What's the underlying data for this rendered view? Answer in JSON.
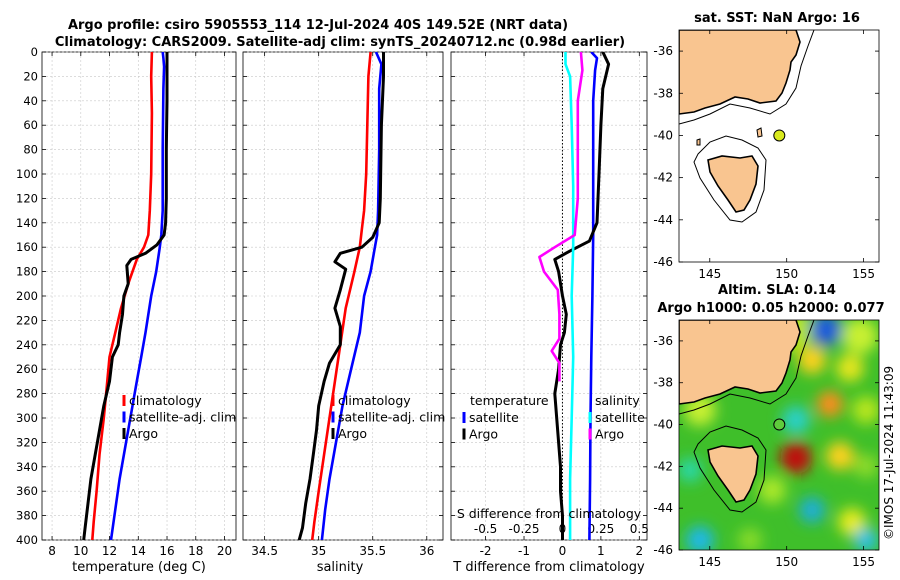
{
  "header": {
    "line1": "Argo profile: csiro 5905553_114 12-Jul-2024 40S 149.52E (NRT data)",
    "line2": "Climatology: CARS2009. Satellite-adj clim: synTS_20240712.nc (0.98d earlier)"
  },
  "credit": "©IMOS 17-Jul-2024 11:43:09",
  "chart_data": [
    {
      "type": "line",
      "id": "temperature-profile",
      "xlabel": "temperature (deg C)",
      "ylabel": "",
      "xlim": [
        7.3,
        20.8
      ],
      "ylim": [
        400,
        0
      ],
      "xticks": [
        8,
        10,
        12,
        14,
        16,
        18,
        20
      ],
      "yticks": [
        0,
        20,
        40,
        60,
        80,
        100,
        120,
        140,
        160,
        180,
        200,
        220,
        240,
        260,
        280,
        300,
        320,
        340,
        360,
        380,
        400
      ],
      "grid": true,
      "legend": {
        "position": "lower-right",
        "title": "",
        "entries": [
          "climatology",
          "satellite-adj. clim",
          "Argo"
        ]
      },
      "series": [
        {
          "name": "climatology",
          "color": "#ff0000",
          "points": [
            [
              14.95,
              0
            ],
            [
              14.9,
              20
            ],
            [
              14.95,
              50
            ],
            [
              14.9,
              100
            ],
            [
              14.8,
              130
            ],
            [
              14.7,
              150
            ],
            [
              14.4,
              160
            ],
            [
              13.9,
              170
            ],
            [
              13.3,
              190
            ],
            [
              12.8,
              210
            ],
            [
              12.4,
              230
            ],
            [
              12.0,
              250
            ],
            [
              11.8,
              275
            ],
            [
              11.6,
              300
            ],
            [
              11.3,
              330
            ],
            [
              11.1,
              360
            ],
            [
              10.9,
              385
            ],
            [
              10.8,
              400
            ]
          ]
        },
        {
          "name": "satellite-adj. clim",
          "color": "#0000ff",
          "points": [
            [
              15.7,
              0
            ],
            [
              15.75,
              5
            ],
            [
              15.8,
              12
            ],
            [
              15.75,
              30
            ],
            [
              15.7,
              80
            ],
            [
              15.7,
              130
            ],
            [
              15.6,
              150
            ],
            [
              15.5,
              160
            ],
            [
              15.25,
              180
            ],
            [
              14.9,
              200
            ],
            [
              14.5,
              230
            ],
            [
              14.2,
              250
            ],
            [
              13.9,
              270
            ],
            [
              13.6,
              290
            ],
            [
              13.3,
              310
            ],
            [
              13.0,
              330
            ],
            [
              12.7,
              350
            ],
            [
              12.4,
              375
            ],
            [
              12.1,
              400
            ]
          ]
        },
        {
          "name": "Argo",
          "color": "#000000",
          "points": [
            [
              16.0,
              0
            ],
            [
              16.0,
              40
            ],
            [
              15.95,
              80
            ],
            [
              15.95,
              120
            ],
            [
              15.9,
              140
            ],
            [
              15.8,
              150
            ],
            [
              15.3,
              158
            ],
            [
              14.5,
              165
            ],
            [
              13.5,
              170
            ],
            [
              13.2,
              175
            ],
            [
              13.3,
              190
            ],
            [
              13.0,
              200
            ],
            [
              12.9,
              215
            ],
            [
              12.7,
              230
            ],
            [
              12.6,
              240
            ],
            [
              12.2,
              250
            ],
            [
              12.0,
              270
            ],
            [
              11.6,
              290
            ],
            [
              11.3,
              310
            ],
            [
              11.0,
              330
            ],
            [
              10.7,
              350
            ],
            [
              10.5,
              370
            ],
            [
              10.3,
              390
            ],
            [
              10.2,
              400
            ]
          ]
        }
      ]
    },
    {
      "type": "line",
      "id": "salinity-profile",
      "xlabel": "salinity",
      "ylabel": "",
      "xlim": [
        34.3,
        36.15
      ],
      "ylim": [
        400,
        0
      ],
      "xticks": [
        34.5,
        35,
        35.5,
        36
      ],
      "grid": true,
      "legend": {
        "position": "lower-right",
        "title": "",
        "entries": [
          "climatology",
          "satellite-adj. clim",
          "Argo"
        ]
      },
      "series": [
        {
          "name": "climatology",
          "color": "#ff0000",
          "points": [
            [
              35.48,
              0
            ],
            [
              35.46,
              20
            ],
            [
              35.45,
              60
            ],
            [
              35.44,
              100
            ],
            [
              35.42,
              130
            ],
            [
              35.4,
              145
            ],
            [
              35.38,
              160
            ],
            [
              35.33,
              180
            ],
            [
              35.25,
              210
            ],
            [
              35.2,
              240
            ],
            [
              35.15,
              270
            ],
            [
              35.1,
              300
            ],
            [
              35.05,
              330
            ],
            [
              35.0,
              360
            ],
            [
              34.96,
              385
            ],
            [
              34.94,
              400
            ]
          ]
        },
        {
          "name": "satellite-adj. clim",
          "color": "#0000ff",
          "points": [
            [
              35.53,
              0
            ],
            [
              35.58,
              10
            ],
            [
              35.56,
              30
            ],
            [
              35.56,
              80
            ],
            [
              35.55,
              130
            ],
            [
              35.54,
              150
            ],
            [
              35.52,
              160
            ],
            [
              35.48,
              180
            ],
            [
              35.42,
              200
            ],
            [
              35.38,
              230
            ],
            [
              35.3,
              260
            ],
            [
              35.22,
              290
            ],
            [
              35.16,
              320
            ],
            [
              35.1,
              350
            ],
            [
              35.06,
              375
            ],
            [
              35.03,
              400
            ]
          ]
        },
        {
          "name": "Argo",
          "color": "#000000",
          "points": [
            [
              35.6,
              0
            ],
            [
              35.6,
              20
            ],
            [
              35.58,
              60
            ],
            [
              35.57,
              120
            ],
            [
              35.56,
              140
            ],
            [
              35.5,
              152
            ],
            [
              35.4,
              160
            ],
            [
              35.2,
              165
            ],
            [
              35.15,
              172
            ],
            [
              35.25,
              178
            ],
            [
              35.2,
              195
            ],
            [
              35.15,
              210
            ],
            [
              35.2,
              225
            ],
            [
              35.2,
              240
            ],
            [
              35.1,
              255
            ],
            [
              35.05,
              270
            ],
            [
              35.0,
              290
            ],
            [
              34.98,
              310
            ],
            [
              34.95,
              330
            ],
            [
              34.92,
              350
            ],
            [
              34.88,
              370
            ],
            [
              34.85,
              390
            ],
            [
              34.82,
              400
            ]
          ]
        }
      ]
    },
    {
      "type": "line",
      "id": "difference-profile",
      "xlabel": "T difference from climatology",
      "x2label": "S difference from climatology",
      "xlim": [
        -2.9,
        2.2
      ],
      "x2lim": [
        -0.725,
        0.55
      ],
      "ylim": [
        400,
        0
      ],
      "xticks": [
        -2,
        -1,
        0,
        1,
        2
      ],
      "x2ticks": [
        -0.5,
        -0.25,
        0,
        0.25,
        0.5
      ],
      "grid": true,
      "zero_line": true,
      "legend": {
        "position": "lower",
        "title_left": "temperature",
        "title_right": "salinity",
        "entries_left": [
          "satellite",
          "Argo"
        ],
        "entries_right": [
          "satellite",
          "Argo"
        ]
      },
      "series": [
        {
          "name": "temperature satellite",
          "color": "#0000ff",
          "axis": "T",
          "points": [
            [
              0.75,
              0
            ],
            [
              0.9,
              5
            ],
            [
              0.85,
              15
            ],
            [
              0.8,
              40
            ],
            [
              0.8,
              100
            ],
            [
              0.8,
              150
            ],
            [
              0.78,
              200
            ],
            [
              0.75,
              250
            ],
            [
              0.73,
              300
            ],
            [
              0.72,
              350
            ],
            [
              0.7,
              400
            ]
          ]
        },
        {
          "name": "temperature Argo",
          "color": "#000000",
          "axis": "T",
          "points": [
            [
              1.05,
              0
            ],
            [
              1.2,
              10
            ],
            [
              1.05,
              30
            ],
            [
              1.0,
              60
            ],
            [
              0.95,
              100
            ],
            [
              0.9,
              140
            ],
            [
              0.7,
              155
            ],
            [
              0.2,
              163
            ],
            [
              -0.2,
              170
            ],
            [
              -0.1,
              180
            ],
            [
              0.0,
              200
            ],
            [
              0.1,
              215
            ],
            [
              0.05,
              230
            ],
            [
              -0.05,
              240
            ],
            [
              -0.1,
              260
            ],
            [
              -0.2,
              280
            ],
            [
              -0.15,
              300
            ],
            [
              -0.1,
              320
            ],
            [
              -0.05,
              340
            ],
            [
              -0.05,
              360
            ],
            [
              0.0,
              380
            ],
            [
              0.0,
              400
            ]
          ]
        },
        {
          "name": "salinity satellite",
          "color": "#00ffff",
          "axis": "S",
          "points": [
            [
              0.02,
              0
            ],
            [
              0.02,
              10
            ],
            [
              0.05,
              20
            ],
            [
              0.06,
              60
            ],
            [
              0.07,
              110
            ],
            [
              0.07,
              160
            ],
            [
              0.06,
              200
            ],
            [
              0.07,
              250
            ],
            [
              0.06,
              300
            ],
            [
              0.05,
              350
            ],
            [
              0.05,
              400
            ]
          ]
        },
        {
          "name": "salinity Argo",
          "color": "#ff00ff",
          "axis": "S",
          "points": [
            [
              0.12,
              0
            ],
            [
              0.13,
              15
            ],
            [
              0.1,
              40
            ],
            [
              0.1,
              80
            ],
            [
              0.1,
              120
            ],
            [
              0.08,
              150
            ],
            [
              -0.05,
              160
            ],
            [
              -0.15,
              168
            ],
            [
              -0.12,
              180
            ],
            [
              -0.03,
              195
            ],
            [
              -0.02,
              215
            ],
            [
              -0.02,
              235
            ],
            [
              -0.07,
              245
            ],
            [
              -0.02,
              255
            ],
            [
              -0.02,
              270
            ]
          ]
        }
      ]
    },
    {
      "type": "map",
      "id": "sst-map",
      "title": "sat. SST: NaN Argo: 16",
      "xlim": [
        143,
        156
      ],
      "ylim": [
        -46,
        -35
      ],
      "xticks": [
        145,
        150,
        155
      ],
      "yticks": [
        -36,
        -38,
        -40,
        -42,
        -44,
        -46
      ],
      "float_position": [
        149.52,
        -40.0
      ],
      "float_color": "#d9ea1e"
    },
    {
      "type": "map",
      "id": "sla-map",
      "title": "Altim. SLA: 0.14",
      "subtitle": "Argo h1000: 0.05 h2000: 0.077",
      "xlim": [
        143,
        156
      ],
      "ylim": [
        -46,
        -35
      ],
      "xticks": [
        145,
        150,
        155
      ],
      "yticks": [
        -36,
        -38,
        -40,
        -42,
        -44,
        -46
      ],
      "float_position": [
        149.52,
        -40.0
      ],
      "float_color": "#5fcb3c"
    }
  ],
  "colors": {
    "land": "#f9c590",
    "sea_default": "#ffffff"
  }
}
